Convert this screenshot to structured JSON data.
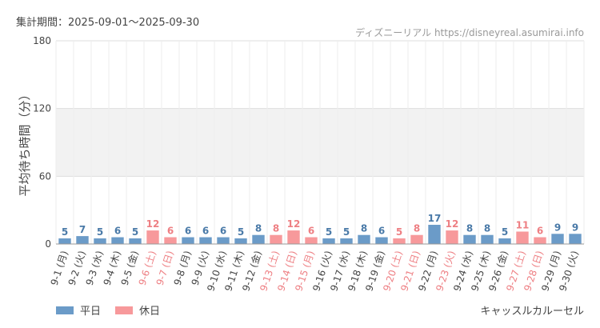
{
  "header": {
    "period_label": "集計期間：2025-09-01～2025-09-30",
    "source": "ディズニーリアル https://disneyreal.asumirai.info"
  },
  "footer": {
    "attraction": "キャッスルカルーセル"
  },
  "colors": {
    "weekday": "#6b9bc8",
    "holiday": "#f7999b",
    "weekday_text": "#4a7aa8",
    "holiday_text": "#ee7f83",
    "tick_text": "#444444",
    "holiday_tick_text": "#ee7f83",
    "grid": "#dddddd",
    "band": "#f2f2f2"
  },
  "chart_data": {
    "type": "bar",
    "ylabel": "平均待ち時間（分）",
    "ylim": [
      0,
      180
    ],
    "yticks": [
      0,
      60,
      120,
      180
    ],
    "band": [
      60,
      120
    ],
    "legend": [
      {
        "name": "平日",
        "key": "weekday"
      },
      {
        "name": "休日",
        "key": "holiday"
      }
    ],
    "categories": [
      "9-1 (月)",
      "9-2 (火)",
      "9-3 (水)",
      "9-4 (木)",
      "9-5 (金)",
      "9-6 (土)",
      "9-7 (日)",
      "9-8 (月)",
      "9-9 (火)",
      "9-10 (水)",
      "9-11 (木)",
      "9-12 (金)",
      "9-13 (土)",
      "9-14 (日)",
      "9-15 (月)",
      "9-16 (火)",
      "9-17 (水)",
      "9-18 (木)",
      "9-19 (金)",
      "9-20 (土)",
      "9-21 (日)",
      "9-22 (月)",
      "9-23 (火)",
      "9-24 (水)",
      "9-25 (木)",
      "9-26 (金)",
      "9-27 (土)",
      "9-28 (日)",
      "9-29 (月)",
      "9-30 (火)"
    ],
    "values": [
      5,
      7,
      5,
      6,
      5,
      12,
      6,
      6,
      6,
      6,
      5,
      8,
      8,
      12,
      6,
      5,
      5,
      8,
      6,
      5,
      8,
      17,
      12,
      8,
      8,
      5,
      11,
      6,
      9,
      9
    ],
    "holiday": [
      false,
      false,
      false,
      false,
      false,
      true,
      true,
      false,
      false,
      false,
      false,
      false,
      true,
      true,
      true,
      false,
      false,
      false,
      false,
      true,
      true,
      false,
      true,
      false,
      false,
      false,
      true,
      true,
      false,
      false
    ]
  }
}
